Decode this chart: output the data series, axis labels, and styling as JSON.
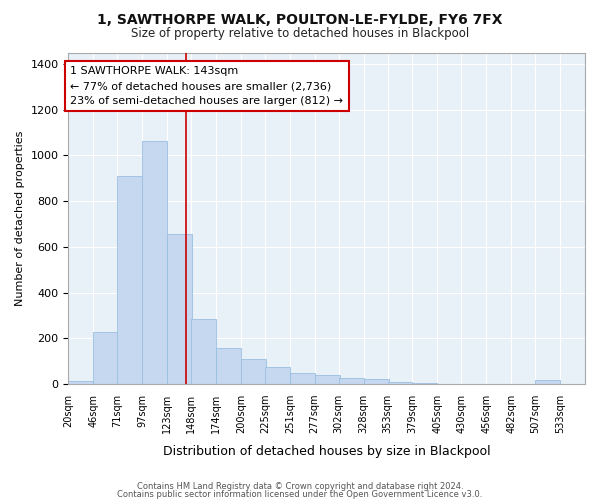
{
  "title": "1, SAWTHORPE WALK, POULTON-LE-FYLDE, FY6 7FX",
  "subtitle": "Size of property relative to detached houses in Blackpool",
  "xlabel": "Distribution of detached houses by size in Blackpool",
  "ylabel": "Number of detached properties",
  "bar_color": "#c5d8f0",
  "bar_edge_color": "#9bbfe0",
  "fig_bg": "#ffffff",
  "axes_bg": "#e8f0f8",
  "grid_color": "#ffffff",
  "vline_x": 143,
  "vline_color": "#cc0000",
  "annotation_text": "1 SAWTHORPE WALK: 143sqm\n← 77% of detached houses are smaller (2,736)\n23% of semi-detached houses are larger (812) →",
  "footer1": "Contains HM Land Registry data © Crown copyright and database right 2024.",
  "footer2": "Contains public sector information licensed under the Open Government Licence v3.0.",
  "bin_starts": [
    20,
    46,
    71,
    97,
    123,
    148,
    174,
    200,
    225,
    251,
    277,
    302,
    328,
    353,
    379,
    405,
    430,
    456,
    482,
    507,
    533
  ],
  "bin_width": 26,
  "counts": [
    15,
    230,
    910,
    1065,
    655,
    285,
    160,
    110,
    75,
    50,
    40,
    25,
    22,
    10,
    5,
    0,
    0,
    0,
    0,
    20,
    0
  ],
  "ylim": [
    0,
    1450
  ],
  "yticks": [
    0,
    200,
    400,
    600,
    800,
    1000,
    1200,
    1400
  ]
}
